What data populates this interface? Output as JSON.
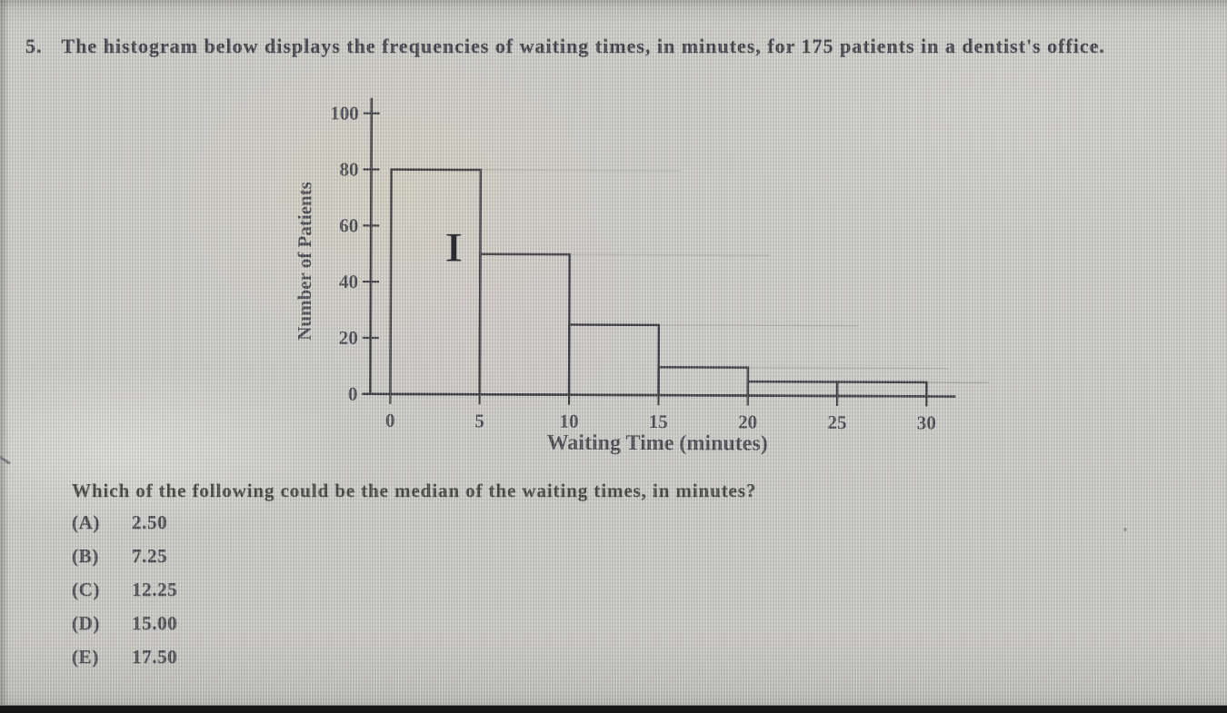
{
  "colors": {
    "paper": "#c9c8c4",
    "ink": "#31313a",
    "chart_line": "#2b2b31",
    "tick_text": "#3c3c44",
    "faint_line": "#98978f",
    "bottom_bar": "#161616"
  },
  "question": {
    "number": "5.",
    "text": "The histogram below displays the frequencies of waiting times, in minutes, for 175 patients in a dentist's office."
  },
  "prompt": "Which of the following could be the median of the waiting times, in minutes?",
  "options": [
    {
      "label": "(A)",
      "value": "2.50"
    },
    {
      "label": "(B)",
      "value": "7.25"
    },
    {
      "label": "(C)",
      "value": "12.25"
    },
    {
      "label": "(D)",
      "value": "15.00"
    },
    {
      "label": "(E)",
      "value": "17.50"
    }
  ],
  "cursor": {
    "icon": "text-ibeam",
    "glyph": "I"
  },
  "chart_data": {
    "type": "bar",
    "title": "",
    "xlabel": "Waiting Time (minutes)",
    "ylabel": "Number of Patients",
    "bin_edges": [
      0,
      5,
      10,
      15,
      20,
      25,
      30
    ],
    "categories": [
      "0-5",
      "5-10",
      "10-15",
      "15-20",
      "20-25",
      "25-30"
    ],
    "values": [
      80,
      50,
      25,
      10,
      5,
      5
    ],
    "x_ticks": [
      0,
      5,
      10,
      15,
      20,
      25,
      30
    ],
    "y_ticks": [
      0,
      20,
      40,
      60,
      80,
      100
    ],
    "xlim": [
      0,
      30
    ],
    "ylim": [
      0,
      100
    ],
    "grid": false,
    "total": 175
  }
}
